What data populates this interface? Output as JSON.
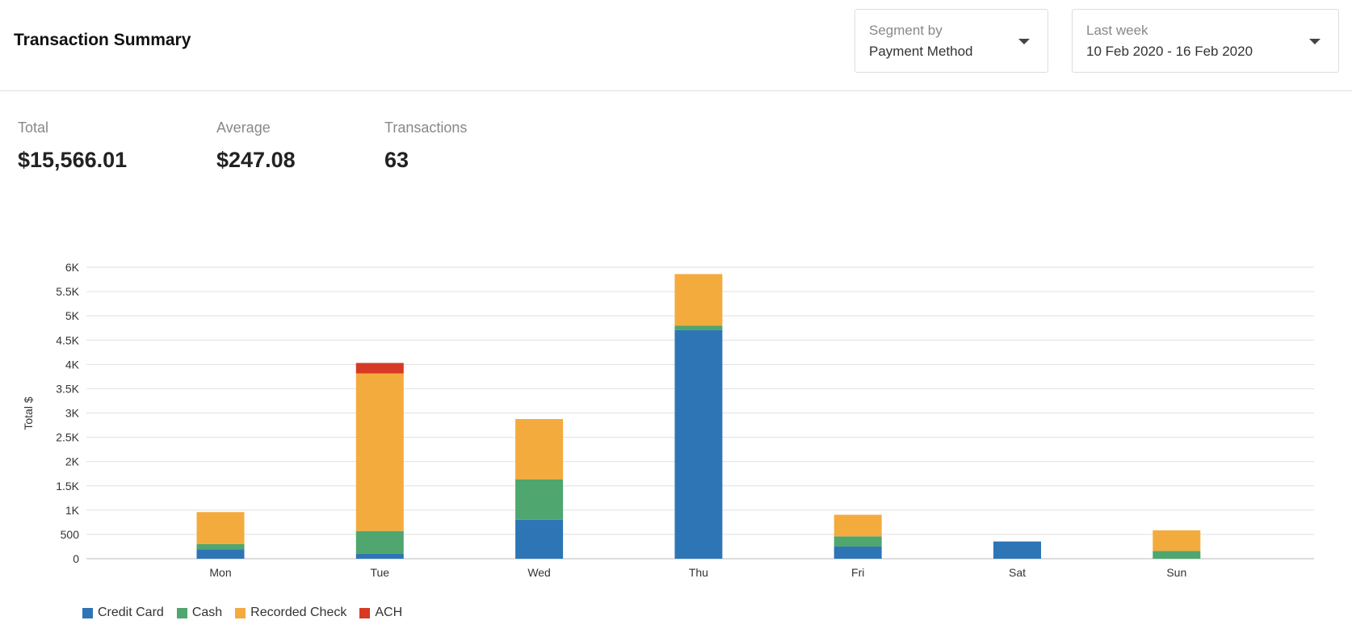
{
  "header": {
    "title": "Transaction Summary",
    "segment": {
      "label": "Segment by",
      "value": "Payment Method"
    },
    "range": {
      "label": "Last week",
      "value": "10 Feb 2020 - 16 Feb 2020"
    }
  },
  "stats": [
    {
      "label": "Total",
      "value": "$15,566.01"
    },
    {
      "label": "Average",
      "value": "$247.08"
    },
    {
      "label": "Transactions",
      "value": "63"
    }
  ],
  "chart_data": {
    "type": "bar",
    "stacked": true,
    "ylabel": "Total $",
    "xlabel": "",
    "ylim": [
      0,
      6000
    ],
    "grid": true,
    "legend_position": "bottom-left",
    "yticks": [
      "0",
      "500",
      "1K",
      "1.5K",
      "2K",
      "2.5K",
      "3K",
      "3.5K",
      "4K",
      "4.5K",
      "5K",
      "5.5K",
      "6K"
    ],
    "categories": [
      "Mon",
      "Tue",
      "Wed",
      "Thu",
      "Fri",
      "Sat",
      "Sun"
    ],
    "series": [
      {
        "name": "Credit Card",
        "color": "#2e75b6",
        "values": [
          195,
          105,
          800,
          4705,
          250,
          355,
          0
        ]
      },
      {
        "name": "Cash",
        "color": "#4fa66f",
        "values": [
          105,
          465,
          835,
          90,
          210,
          0,
          160
        ]
      },
      {
        "name": "Recorded Check",
        "color": "#f4ab3e",
        "values": [
          660,
          3245,
          1240,
          1065,
          445,
          0,
          425
        ]
      },
      {
        "name": "ACH",
        "color": "#d63a24",
        "values": [
          0,
          215,
          0,
          0,
          0,
          0,
          0
        ]
      }
    ]
  }
}
